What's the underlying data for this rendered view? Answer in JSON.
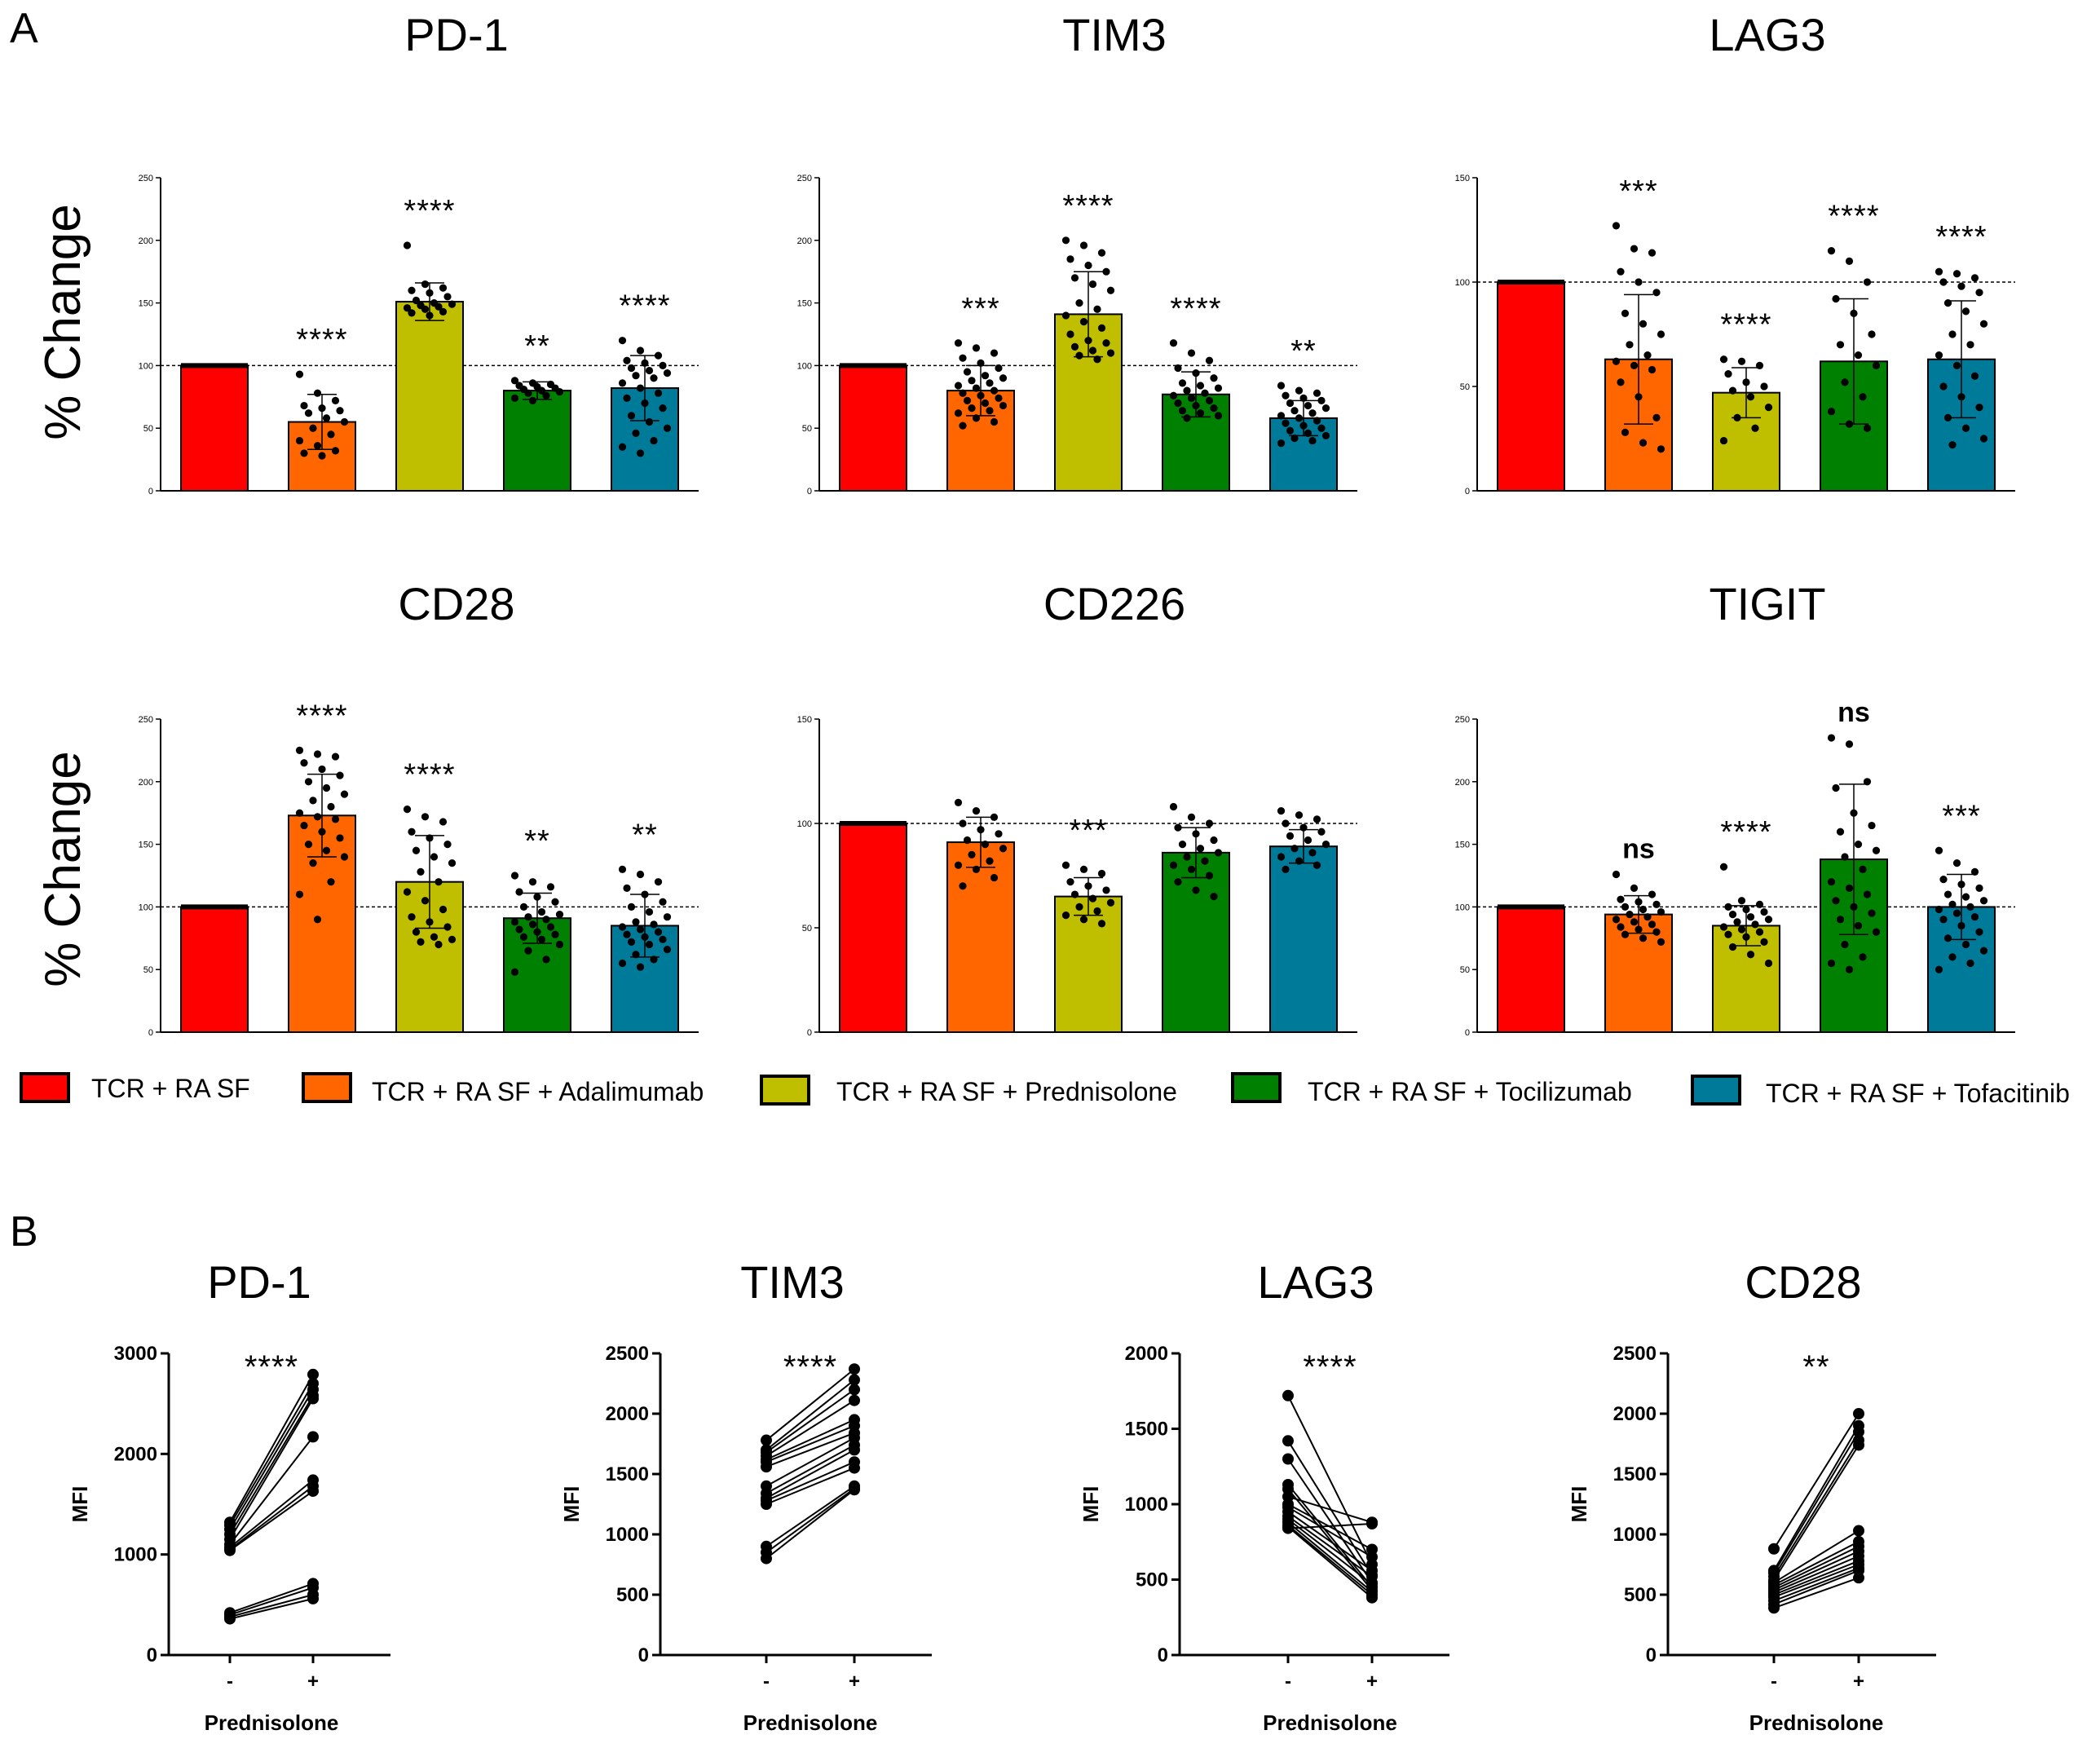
{
  "panel_labels": {
    "a": "A",
    "b": "B"
  },
  "colors": {
    "red": "#ff0000",
    "orange": "#ff6600",
    "olive": "#bfbf00",
    "green": "#008000",
    "teal": "#007a99"
  },
  "legend": [
    {
      "label": "TCR + RA SF",
      "color": "#ff0000"
    },
    {
      "label": "TCR + RA SF + Adalimumab",
      "color": "#ff6600"
    },
    {
      "label": "TCR + RA SF + Prednisolone",
      "color": "#bfbf00"
    },
    {
      "label": "TCR + RA SF + Tocilizumab",
      "color": "#008000"
    },
    {
      "label": "TCR + RA SF + Tofacitinib",
      "color": "#007a99"
    }
  ],
  "y_axis_label_a": "% Change",
  "chart_data": [
    {
      "type": "bar",
      "title": "PD-1",
      "ylabel": "% Change",
      "ylim": [
        0,
        250
      ],
      "ticks": [
        0,
        50,
        100,
        150,
        200,
        250
      ],
      "categories": [
        "TCR + RA SF",
        "TCR + RA SF + Adalimumab",
        "TCR + RA SF + Prednisolone",
        "TCR + RA SF + Tocilizumab",
        "TCR + RA SF + Tofacitinib"
      ],
      "values": [
        100,
        55,
        151,
        80,
        82
      ],
      "sd": [
        0,
        22,
        15,
        7,
        26
      ],
      "points": [
        [
          100,
          100,
          100,
          100,
          100,
          100,
          100,
          100,
          100,
          100
        ],
        [
          93,
          78,
          72,
          68,
          66,
          64,
          62,
          58,
          55,
          50,
          45,
          40,
          36,
          32,
          30,
          28
        ],
        [
          196,
          165,
          162,
          160,
          158,
          155,
          152,
          150,
          149,
          148,
          147,
          146,
          145,
          143,
          142,
          140
        ],
        [
          88,
          86,
          85,
          84,
          83,
          82,
          81,
          80,
          79,
          78,
          76,
          74,
          72
        ],
        [
          120,
          112,
          108,
          104,
          102,
          100,
          98,
          96,
          94,
          92,
          90,
          86,
          82,
          78,
          74,
          70,
          66,
          60,
          55,
          50,
          46,
          40,
          35,
          30
        ]
      ],
      "labels": [
        "",
        "****",
        "****",
        "**",
        "****"
      ]
    },
    {
      "type": "bar",
      "title": "TIM3",
      "ylabel": "% Change",
      "ylim": [
        0,
        250
      ],
      "ticks": [
        0,
        50,
        100,
        150,
        200,
        250
      ],
      "categories": [
        "TCR + RA SF",
        "TCR + RA SF + Adalimumab",
        "TCR + RA SF + Prednisolone",
        "TCR + RA SF + Tocilizumab",
        "TCR + RA SF + Tofacitinib"
      ],
      "values": [
        100,
        80,
        141,
        77,
        58
      ],
      "sd": [
        0,
        20,
        34,
        18,
        14
      ],
      "points": [
        [
          100,
          100,
          100,
          100,
          100,
          100,
          100,
          100
        ],
        [
          118,
          114,
          110,
          106,
          102,
          98,
          95,
          92,
          90,
          88,
          86,
          84,
          82,
          80,
          78,
          76,
          74,
          72,
          70,
          68,
          66,
          64,
          62,
          58,
          55,
          52
        ],
        [
          200,
          196,
          190,
          185,
          180,
          175,
          170,
          165,
          160,
          150,
          145,
          140,
          135,
          130,
          125,
          120,
          118,
          115,
          112,
          110,
          108,
          105
        ],
        [
          118,
          110,
          104,
          98,
          94,
          90,
          86,
          84,
          82,
          80,
          78,
          76,
          74,
          72,
          70,
          68,
          66,
          64,
          62,
          60,
          58
        ],
        [
          84,
          80,
          78,
          76,
          74,
          72,
          70,
          68,
          66,
          64,
          62,
          60,
          58,
          56,
          54,
          52,
          50,
          48,
          46,
          44,
          42,
          40,
          38
        ]
      ],
      "labels": [
        "",
        "***",
        "****",
        "****",
        "**"
      ]
    },
    {
      "type": "bar",
      "title": "LAG3",
      "ylabel": "% Change",
      "ylim": [
        0,
        150
      ],
      "ticks": [
        0,
        50,
        100,
        150
      ],
      "categories": [
        "TCR + RA SF",
        "TCR + RA SF + Adalimumab",
        "TCR + RA SF + Prednisolone",
        "TCR + RA SF + Tocilizumab",
        "TCR + RA SF + Tofacitinib"
      ],
      "values": [
        100,
        63,
        47,
        62,
        63
      ],
      "sd": [
        0,
        31,
        12,
        30,
        28
      ],
      "points": [
        [
          100,
          100,
          100,
          100,
          100,
          100,
          100,
          100
        ],
        [
          127,
          116,
          114,
          105,
          100,
          95,
          85,
          80,
          75,
          70,
          65,
          62,
          60,
          58,
          52,
          45,
          35,
          28,
          23,
          20
        ],
        [
          63,
          62,
          60,
          56,
          52,
          50,
          48,
          45,
          40,
          35,
          30,
          24
        ],
        [
          115,
          110,
          100,
          92,
          85,
          75,
          70,
          65,
          60,
          52,
          45,
          38,
          32,
          30
        ],
        [
          105,
          104,
          102,
          100,
          98,
          95,
          90,
          86,
          80,
          75,
          70,
          65,
          60,
          55,
          50,
          45,
          40,
          35,
          30,
          25,
          22
        ]
      ],
      "labels": [
        "",
        "***",
        "****",
        "****",
        "****"
      ]
    },
    {
      "type": "bar",
      "title": "CD28",
      "ylabel": "% Change",
      "ylim": [
        0,
        250
      ],
      "ticks": [
        0,
        50,
        100,
        150,
        200,
        250
      ],
      "categories": [
        "TCR + RA SF",
        "TCR + RA SF + Adalimumab",
        "TCR + RA SF + Prednisolone",
        "TCR + RA SF + Tocilizumab",
        "TCR + RA SF + Tofacitinib"
      ],
      "values": [
        100,
        173,
        120,
        91,
        85
      ],
      "sd": [
        0,
        33,
        37,
        20,
        25
      ],
      "points": [
        [
          100,
          100,
          100,
          100,
          100,
          100,
          100,
          100
        ],
        [
          225,
          222,
          220,
          215,
          210,
          205,
          200,
          195,
          190,
          185,
          180,
          175,
          172,
          170,
          165,
          160,
          155,
          150,
          145,
          140,
          135,
          120,
          110,
          90
        ],
        [
          178,
          172,
          168,
          160,
          155,
          150,
          145,
          140,
          135,
          128,
          120,
          112,
          105,
          98,
          92,
          88,
          84,
          80,
          76,
          74,
          72,
          70
        ],
        [
          125,
          120,
          116,
          112,
          108,
          104,
          100,
          96,
          94,
          92,
          90,
          88,
          86,
          84,
          82,
          80,
          78,
          76,
          74,
          70,
          65,
          58,
          48
        ],
        [
          130,
          126,
          120,
          115,
          110,
          104,
          100,
          96,
          92,
          88,
          86,
          84,
          82,
          80,
          78,
          76,
          74,
          72,
          70,
          66,
          62,
          58,
          55,
          52
        ]
      ],
      "labels": [
        "",
        "****",
        "****",
        "**",
        "**"
      ]
    },
    {
      "type": "bar",
      "title": "CD226",
      "ylabel": "% Change",
      "ylim": [
        0,
        150
      ],
      "ticks": [
        0,
        50,
        100,
        150
      ],
      "categories": [
        "TCR + RA SF",
        "TCR + RA SF + Adalimumab",
        "TCR + RA SF + Prednisolone",
        "TCR + RA SF + Tocilizumab",
        "TCR + RA SF + Tofacitinib"
      ],
      "values": [
        100,
        91,
        65,
        86,
        89
      ],
      "sd": [
        0,
        12,
        9,
        12,
        8
      ],
      "points": [
        [
          100,
          100,
          100,
          100,
          100,
          100,
          100,
          100
        ],
        [
          110,
          106,
          103,
          100,
          97,
          95,
          92,
          90,
          88,
          85,
          82,
          80,
          78,
          74,
          70
        ],
        [
          80,
          78,
          76,
          72,
          70,
          68,
          66,
          64,
          62,
          60,
          58,
          56,
          54,
          52
        ],
        [
          108,
          103,
          100,
          98,
          95,
          92,
          90,
          88,
          86,
          84,
          82,
          80,
          78,
          75,
          72,
          68,
          65
        ],
        [
          106,
          104,
          102,
          100,
          98,
          96,
          94,
          92,
          90,
          88,
          86,
          84,
          82,
          80,
          78
        ]
      ],
      "labels": [
        "",
        "",
        "***",
        "",
        ""
      ]
    },
    {
      "type": "bar",
      "title": "TIGIT",
      "ylabel": "% Change",
      "ylim": [
        0,
        250
      ],
      "ticks": [
        0,
        50,
        100,
        150,
        200,
        250
      ],
      "categories": [
        "TCR + RA SF",
        "TCR + RA SF + Adalimumab",
        "TCR + RA SF + Prednisolone",
        "TCR + RA SF + Tocilizumab",
        "TCR + RA SF + Tofacitinib"
      ],
      "values": [
        100,
        94,
        85,
        138,
        100
      ],
      "sd": [
        0,
        15,
        16,
        60,
        26
      ],
      "points": [
        [
          100,
          100,
          100,
          100,
          100,
          100,
          100,
          100,
          100,
          100,
          100
        ],
        [
          126,
          115,
          110,
          106,
          104,
          102,
          100,
          98,
          96,
          94,
          92,
          90,
          88,
          86,
          84,
          82,
          80,
          78,
          75,
          72
        ],
        [
          132,
          105,
          102,
          100,
          98,
          96,
          94,
          92,
          90,
          88,
          86,
          84,
          82,
          80,
          78,
          76,
          72,
          68,
          62,
          55
        ],
        [
          235,
          230,
          200,
          195,
          175,
          165,
          160,
          150,
          145,
          140,
          130,
          120,
          115,
          110,
          105,
          100,
          95,
          90,
          85,
          80,
          70,
          60,
          55,
          50
        ],
        [
          145,
          135,
          128,
          122,
          118,
          115,
          110,
          108,
          105,
          102,
          100,
          98,
          95,
          92,
          90,
          85,
          80,
          75,
          70,
          65,
          60,
          55,
          50
        ]
      ],
      "labels": [
        "",
        "ns",
        "****",
        "ns",
        "***"
      ]
    },
    {
      "type": "line",
      "title": "PD-1",
      "xlabel": "Prednisolone",
      "ylabel": "MFI",
      "xticks": [
        "-",
        "+"
      ],
      "ylim": [
        0,
        3000
      ],
      "ticks": [
        0,
        1000,
        2000,
        3000
      ],
      "pairs": [
        [
          1320,
          2790
        ],
        [
          1290,
          2700
        ],
        [
          1250,
          2640
        ],
        [
          1200,
          2580
        ],
        [
          1150,
          2550
        ],
        [
          1100,
          2170
        ],
        [
          1070,
          1740
        ],
        [
          1050,
          1680
        ],
        [
          1040,
          1630
        ],
        [
          420,
          710
        ],
        [
          400,
          670
        ],
        [
          380,
          600
        ],
        [
          360,
          560
        ]
      ],
      "label": "****"
    },
    {
      "type": "line",
      "title": "TIM3",
      "xlabel": "Prednisolone",
      "ylabel": "MFI",
      "xticks": [
        "-",
        "+"
      ],
      "ylim": [
        0,
        2500
      ],
      "ticks": [
        0,
        500,
        1000,
        1500,
        2000,
        2500
      ],
      "pairs": [
        [
          1780,
          2370
        ],
        [
          1700,
          2280
        ],
        [
          1680,
          2200
        ],
        [
          1650,
          2110
        ],
        [
          1620,
          1950
        ],
        [
          1600,
          1900
        ],
        [
          1560,
          1840
        ],
        [
          1400,
          1800
        ],
        [
          1340,
          1740
        ],
        [
          1300,
          1700
        ],
        [
          1280,
          1600
        ],
        [
          1250,
          1550
        ],
        [
          900,
          1400
        ],
        [
          850,
          1380
        ],
        [
          800,
          1370
        ]
      ],
      "label": "****"
    },
    {
      "type": "line",
      "title": "LAG3",
      "xlabel": "Prednisolone",
      "ylabel": "MFI",
      "xticks": [
        "-",
        "+"
      ],
      "ylim": [
        0,
        2000
      ],
      "ticks": [
        0,
        500,
        1000,
        1500,
        2000
      ],
      "pairs": [
        [
          1720,
          600
        ],
        [
          1420,
          530
        ],
        [
          1300,
          480
        ],
        [
          1130,
          450
        ],
        [
          1100,
          430
        ],
        [
          1050,
          880
        ],
        [
          1000,
          700
        ],
        [
          980,
          650
        ],
        [
          950,
          560
        ],
        [
          920,
          520
        ],
        [
          900,
          470
        ],
        [
          880,
          420
        ],
        [
          860,
          400
        ],
        [
          850,
          380
        ],
        [
          840,
          870
        ]
      ],
      "label": "****"
    },
    {
      "type": "line",
      "title": "CD28",
      "xlabel": "Prednisolone",
      "ylabel": "MFI",
      "xticks": [
        "-",
        "+"
      ],
      "ylim": [
        0,
        2500
      ],
      "ticks": [
        0,
        500,
        1000,
        1500,
        2000,
        2500
      ],
      "pairs": [
        [
          880,
          2000
        ],
        [
          700,
          1900
        ],
        [
          680,
          1850
        ],
        [
          650,
          1780
        ],
        [
          620,
          1740
        ],
        [
          600,
          1030
        ],
        [
          580,
          940
        ],
        [
          560,
          900
        ],
        [
          540,
          860
        ],
        [
          520,
          820
        ],
        [
          500,
          780
        ],
        [
          480,
          750
        ],
        [
          450,
          720
        ],
        [
          420,
          700
        ],
        [
          390,
          640
        ]
      ],
      "label": "**"
    }
  ]
}
